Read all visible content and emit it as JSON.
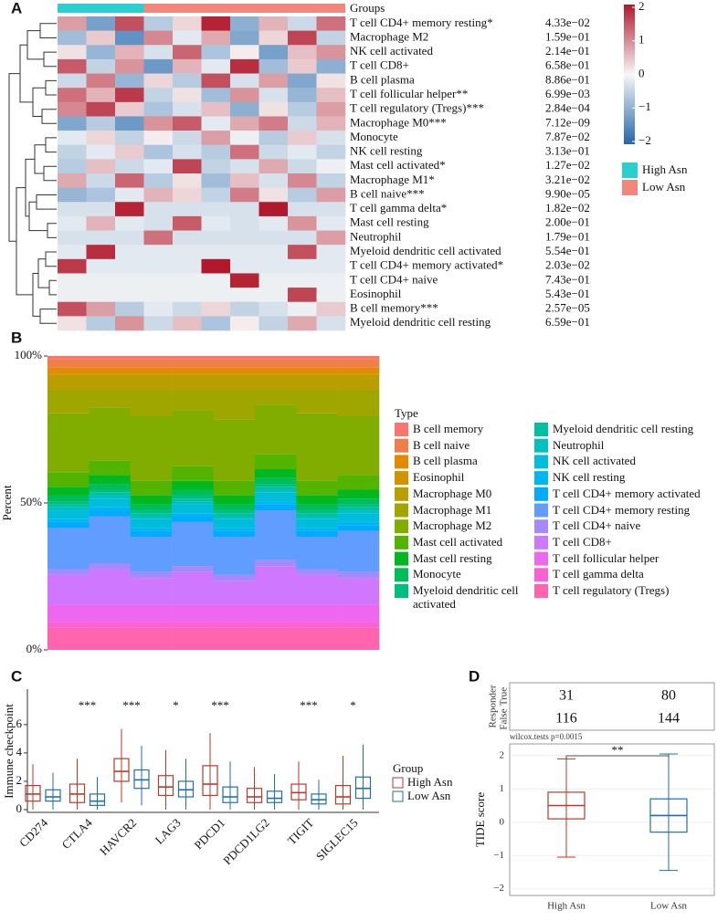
{
  "chart_data": [
    {
      "type": "heatmap",
      "panel_label": "A",
      "groups_title": "Groups",
      "groups": [
        {
          "name": "High Asn",
          "color": "#2ACFCF",
          "n": 3
        },
        {
          "name": "Low Asn",
          "color": "#F4877C",
          "n": 7
        }
      ],
      "colorbar": {
        "lim": [
          -2,
          2
        ],
        "colors": [
          "#2166AC",
          "#F7F7F7",
          "#B2182B"
        ],
        "ticks": [
          2,
          1,
          0,
          {
            "value": -1,
            "label": "−1"
          },
          {
            "value": -2,
            "label": "−2"
          }
        ]
      },
      "rows": [
        {
          "name": "T cell CD4+ memory resting*",
          "p_value": "4.33e−02",
          "values": [
            0.8,
            -1.2,
            1.5,
            -0.6,
            0.3,
            1.9,
            -1.0,
            0.6,
            -0.4,
            1.2
          ]
        },
        {
          "name": "Macrophage M2",
          "p_value": "1.59e−01",
          "values": [
            -0.8,
            0.4,
            -1.4,
            1.0,
            -0.2,
            0.7,
            -1.1,
            0.3,
            1.6,
            -0.5
          ]
        },
        {
          "name": "NK cell activated",
          "p_value": "2.14e−01",
          "values": [
            0.2,
            -0.9,
            0.6,
            -0.3,
            1.3,
            -0.7,
            0.1,
            -1.2,
            0.5,
            0.9
          ]
        },
        {
          "name": "T cell CD8+",
          "p_value": "6.58e−01",
          "values": [
            1.4,
            -0.5,
            0.9,
            -1.3,
            0.6,
            -0.2,
            1.8,
            -0.8,
            0.4,
            -1.0
          ]
        },
        {
          "name": "B cell plasma",
          "p_value": "8.86e−01",
          "values": [
            -0.4,
            1.1,
            -0.9,
            0.3,
            -0.6,
            1.5,
            -0.3,
            0.8,
            -1.1,
            0.2
          ]
        },
        {
          "name": "T cell follicular helper**",
          "p_value": "6.99e−03",
          "values": [
            1.2,
            0.6,
            1.7,
            -0.5,
            0.2,
            -0.8,
            0.9,
            -0.3,
            -0.9,
            0.5
          ]
        },
        {
          "name": "T cell regulatory (Tregs)***",
          "p_value": "2.84e−04",
          "values": [
            1.0,
            1.6,
            0.4,
            -0.7,
            -0.3,
            0.5,
            -1.0,
            0.2,
            -0.6,
            0.8
          ]
        },
        {
          "name": "Macrophage M0***",
          "p_value": "7.12e−09",
          "values": [
            -1.1,
            -0.6,
            -1.3,
            0.9,
            1.4,
            -0.2,
            0.7,
            1.1,
            -0.4,
            0.6
          ]
        },
        {
          "name": "Monocyte",
          "p_value": "7.87e−02",
          "values": [
            -0.2,
            0.3,
            -0.5,
            0.1,
            -0.4,
            0.8,
            -0.1,
            -0.6,
            0.4,
            -0.3
          ]
        },
        {
          "name": "NK cell resting",
          "p_value": "3.13e−01",
          "values": [
            -0.5,
            -0.2,
            0.4,
            -0.7,
            -0.3,
            -0.6,
            1.2,
            -0.4,
            -0.2,
            -0.5
          ]
        },
        {
          "name": "Mast cell activated*",
          "p_value": "1.27e−02",
          "values": [
            -0.6,
            0.5,
            -0.4,
            -0.2,
            1.6,
            -0.5,
            -0.3,
            0.7,
            -0.4,
            -0.1
          ]
        },
        {
          "name": "Macrophage M1*",
          "p_value": "3.21e−02",
          "values": [
            0.7,
            -0.4,
            1.3,
            -0.6,
            0.2,
            -0.8,
            0.5,
            -0.3,
            1.0,
            -0.5
          ]
        },
        {
          "name": "B cell naive***",
          "p_value": "9.90e−05",
          "values": [
            -0.9,
            -0.7,
            -0.2,
            0.6,
            0.3,
            -0.5,
            1.1,
            0.2,
            -0.6,
            0.8
          ]
        },
        {
          "name": "T cell gamma delta*",
          "p_value": "1.82e−02",
          "values": [
            -0.3,
            -0.3,
            1.9,
            -0.3,
            -0.3,
            -0.3,
            -0.3,
            2.0,
            -0.3,
            -0.3
          ]
        },
        {
          "name": "Mast cell resting",
          "p_value": "2.00e−01",
          "values": [
            -0.2,
            0.6,
            -0.2,
            -0.3,
            1.4,
            -0.2,
            -0.3,
            -0.2,
            0.9,
            -0.2
          ]
        },
        {
          "name": "Neutrophil",
          "p_value": "1.79e−01",
          "values": [
            -0.3,
            -0.3,
            -0.3,
            1.2,
            -0.3,
            -0.3,
            -0.3,
            -0.3,
            -0.3,
            0.8
          ]
        },
        {
          "name": "Myeloid dendritic cell activated",
          "p_value": "5.54e−01",
          "values": [
            -0.2,
            1.8,
            -0.2,
            -0.2,
            -0.2,
            -0.2,
            -0.2,
            -0.2,
            1.5,
            -0.2
          ]
        },
        {
          "name": "T cell CD4+ memory activated*",
          "p_value": "2.03e−02",
          "values": [
            1.7,
            -0.2,
            -0.2,
            -0.2,
            -0.2,
            2.0,
            -0.2,
            -0.2,
            -0.2,
            -0.2
          ]
        },
        {
          "name": "T cell CD4+ naive",
          "p_value": "7.43e−01",
          "values": [
            -0.1,
            -0.1,
            -0.1,
            -0.1,
            -0.1,
            -0.1,
            1.9,
            -0.1,
            -0.1,
            -0.1
          ]
        },
        {
          "name": "Eosinophil",
          "p_value": "5.43e−01",
          "values": [
            -0.1,
            -0.1,
            -0.1,
            -0.1,
            -0.1,
            -0.1,
            -0.1,
            -0.1,
            1.6,
            -0.1
          ]
        },
        {
          "name": "B cell memory***",
          "p_value": "2.57e−05",
          "values": [
            1.5,
            0.8,
            -0.6,
            -0.2,
            -0.4,
            0.3,
            -0.5,
            -0.3,
            -0.1,
            0.4
          ]
        },
        {
          "name": "Myeloid dendritic cell resting",
          "p_value": "6.59e−01",
          "values": [
            0.2,
            -0.6,
            0.9,
            -0.4,
            0.5,
            -0.7,
            0.1,
            -0.5,
            0.7,
            -0.3
          ]
        }
      ]
    },
    {
      "type": "bar",
      "stacked": true,
      "panel_label": "B",
      "y_label": "Percent",
      "legend_title": "Type",
      "ylim": [
        0,
        100
      ],
      "yticks": [
        {
          "value": 0,
          "label": "0%"
        },
        {
          "value": 50,
          "label": "50%"
        },
        {
          "value": 100,
          "label": "100%"
        }
      ],
      "series": [
        {
          "name": "B cell memory",
          "color": "#F8766D",
          "values": [
            1,
            1,
            1,
            1,
            1,
            1,
            1,
            1
          ]
        },
        {
          "name": "B cell naive",
          "color": "#EF7F48",
          "values": [
            3,
            3,
            3,
            3,
            3,
            3,
            3,
            3
          ]
        },
        {
          "name": "B cell plasma",
          "color": "#E28A00",
          "values": [
            2,
            2,
            2,
            2,
            2,
            2,
            2,
            2
          ]
        },
        {
          "name": "Eosinophil",
          "color": "#D19400",
          "values": [
            0.5,
            0.5,
            0.5,
            0.5,
            0.5,
            0.5,
            0.5,
            0.5
          ]
        },
        {
          "name": "Macrophage M0",
          "color": "#BA9E00",
          "values": [
            5,
            5,
            5,
            5,
            5,
            5,
            5,
            5
          ]
        },
        {
          "name": "Macrophage M1",
          "color": "#A0A600",
          "values": [
            8,
            6,
            9,
            7,
            10,
            5,
            8,
            9
          ]
        },
        {
          "name": "Macrophage M2",
          "color": "#80AD00",
          "values": [
            20,
            18,
            22,
            19,
            21,
            17,
            23,
            20
          ]
        },
        {
          "name": "Mast cell activated",
          "color": "#53B400",
          "values": [
            5,
            5,
            5,
            5,
            5,
            5,
            5,
            5
          ]
        },
        {
          "name": "Mast cell resting",
          "color": "#00B81F",
          "values": [
            3,
            3,
            3,
            3,
            3,
            3,
            3,
            3
          ]
        },
        {
          "name": "Monocyte",
          "color": "#00BC59",
          "values": [
            2,
            2,
            2,
            2,
            2,
            2,
            2,
            2
          ]
        },
        {
          "name": "Myeloid dendritic cell activated",
          "color": "#00BE80",
          "values": [
            1,
            1,
            1,
            1,
            1,
            1,
            1,
            1
          ]
        },
        {
          "name": "Myeloid dendritic cell resting",
          "color": "#00C0A3",
          "values": [
            1,
            1,
            1,
            1,
            1,
            1,
            1,
            1
          ]
        },
        {
          "name": "Neutrophil",
          "color": "#00C0C2",
          "values": [
            1,
            1,
            1,
            1,
            1,
            1,
            1,
            1
          ]
        },
        {
          "name": "NK cell activated",
          "color": "#00BDDC",
          "values": [
            3,
            3,
            3,
            3,
            3,
            3,
            3,
            3
          ]
        },
        {
          "name": "NK cell resting",
          "color": "#00B6F1",
          "values": [
            1,
            1,
            1,
            1,
            1,
            1,
            1,
            1
          ]
        },
        {
          "name": "T cell CD4+ memory activated",
          "color": "#00ABFD",
          "values": [
            2,
            2,
            2,
            2,
            2,
            2,
            2,
            2
          ]
        },
        {
          "name": "T cell CD4+ memory resting",
          "color": "#619CFF",
          "values": [
            14,
            16,
            12,
            15,
            13,
            17,
            11,
            14
          ]
        },
        {
          "name": "T cell CD4+ naive",
          "color": "#A58AFF",
          "values": [
            2,
            2,
            2,
            2,
            2,
            2,
            2,
            2
          ]
        },
        {
          "name": "T cell CD8+",
          "color": "#CF78FF",
          "values": [
            10,
            12,
            9,
            11,
            8,
            13,
            10,
            9
          ]
        },
        {
          "name": "T cell follicular helper",
          "color": "#EC69EF",
          "values": [
            6,
            6,
            6,
            6,
            6,
            6,
            6,
            6
          ]
        },
        {
          "name": "T cell gamma delta",
          "color": "#FA62D4",
          "values": [
            2,
            2,
            2,
            2,
            2,
            2,
            2,
            2
          ]
        },
        {
          "name": "T cell regulatory (Tregs)",
          "color": "#FF65AE",
          "values": [
            7.5,
            7.5,
            7.5,
            7.5,
            7.5,
            7.5,
            7.5,
            7.5
          ]
        }
      ]
    },
    {
      "type": "box",
      "panel_label": "C",
      "y_label": "Immune checkpoint",
      "legend_title": "Group",
      "categories": [
        "CD274",
        "CTLA4",
        "HAVCR2",
        "LAG3",
        "PDCD1",
        "PDCD1LG2",
        "TIGIT",
        "SIGLEC15"
      ],
      "significance": [
        null,
        "***",
        "***",
        "*",
        "***",
        null,
        "***",
        "*"
      ],
      "ylim": [
        0,
        8.5
      ],
      "yticks": [
        0,
        2,
        4,
        6
      ],
      "series": [
        {
          "name": "High Asn",
          "color": "#B83A2A",
          "q1": [
            0.6,
            0.5,
            2.0,
            1.0,
            1.0,
            0.5,
            0.7,
            0.4
          ],
          "median": [
            1.1,
            1.1,
            2.7,
            1.6,
            1.8,
            0.9,
            1.2,
            0.9
          ],
          "q3": [
            1.7,
            1.8,
            3.6,
            2.4,
            3.1,
            1.5,
            1.8,
            1.7
          ],
          "whislo": [
            0,
            0,
            0.5,
            0,
            0,
            0,
            0,
            0
          ],
          "whishi": [
            3.2,
            3.6,
            5.7,
            4.2,
            5.4,
            3.0,
            3.4,
            3.8
          ]
        },
        {
          "name": "Low Asn",
          "color": "#1F6EB0",
          "q1": [
            0.6,
            0.3,
            1.5,
            0.9,
            0.5,
            0.5,
            0.4,
            0.8
          ],
          "median": [
            0.9,
            0.6,
            2.1,
            1.4,
            0.9,
            0.8,
            0.7,
            1.5
          ],
          "q3": [
            1.4,
            1.1,
            2.8,
            2.0,
            1.6,
            1.3,
            1.1,
            2.3
          ],
          "whislo": [
            0,
            0,
            0.3,
            0,
            0,
            0,
            0,
            0
          ],
          "whishi": [
            2.6,
            2.3,
            4.5,
            3.6,
            3.4,
            2.5,
            2.1,
            4.6
          ]
        }
      ]
    },
    {
      "type": "box",
      "panel_label": "D",
      "y_label": "TIDE score",
      "test_label": "wilcox.tests p=0.0015",
      "sig": "**",
      "table": {
        "row_header": "Responder",
        "rows": [
          {
            "label": "True",
            "counts": [
              31,
              80
            ]
          },
          {
            "label": "False",
            "counts": [
              116,
              144
            ]
          }
        ]
      },
      "categories": [
        "High Asn",
        "Low Asn"
      ],
      "ylim": [
        -2.2,
        2.35
      ],
      "yticks": [
        {
          "value": -2,
          "label": "−2"
        },
        {
          "value": -1,
          "label": "−1"
        },
        0,
        1,
        2
      ],
      "series": [
        {
          "colors": [
            "#B83A2A",
            "#1F6EB0"
          ],
          "q1": [
            0.1,
            -0.3
          ],
          "median": [
            0.5,
            0.2
          ],
          "q3": [
            0.9,
            0.7
          ],
          "whislo": [
            -1.05,
            -1.45
          ],
          "whishi": [
            1.9,
            2.05
          ]
        }
      ]
    }
  ]
}
